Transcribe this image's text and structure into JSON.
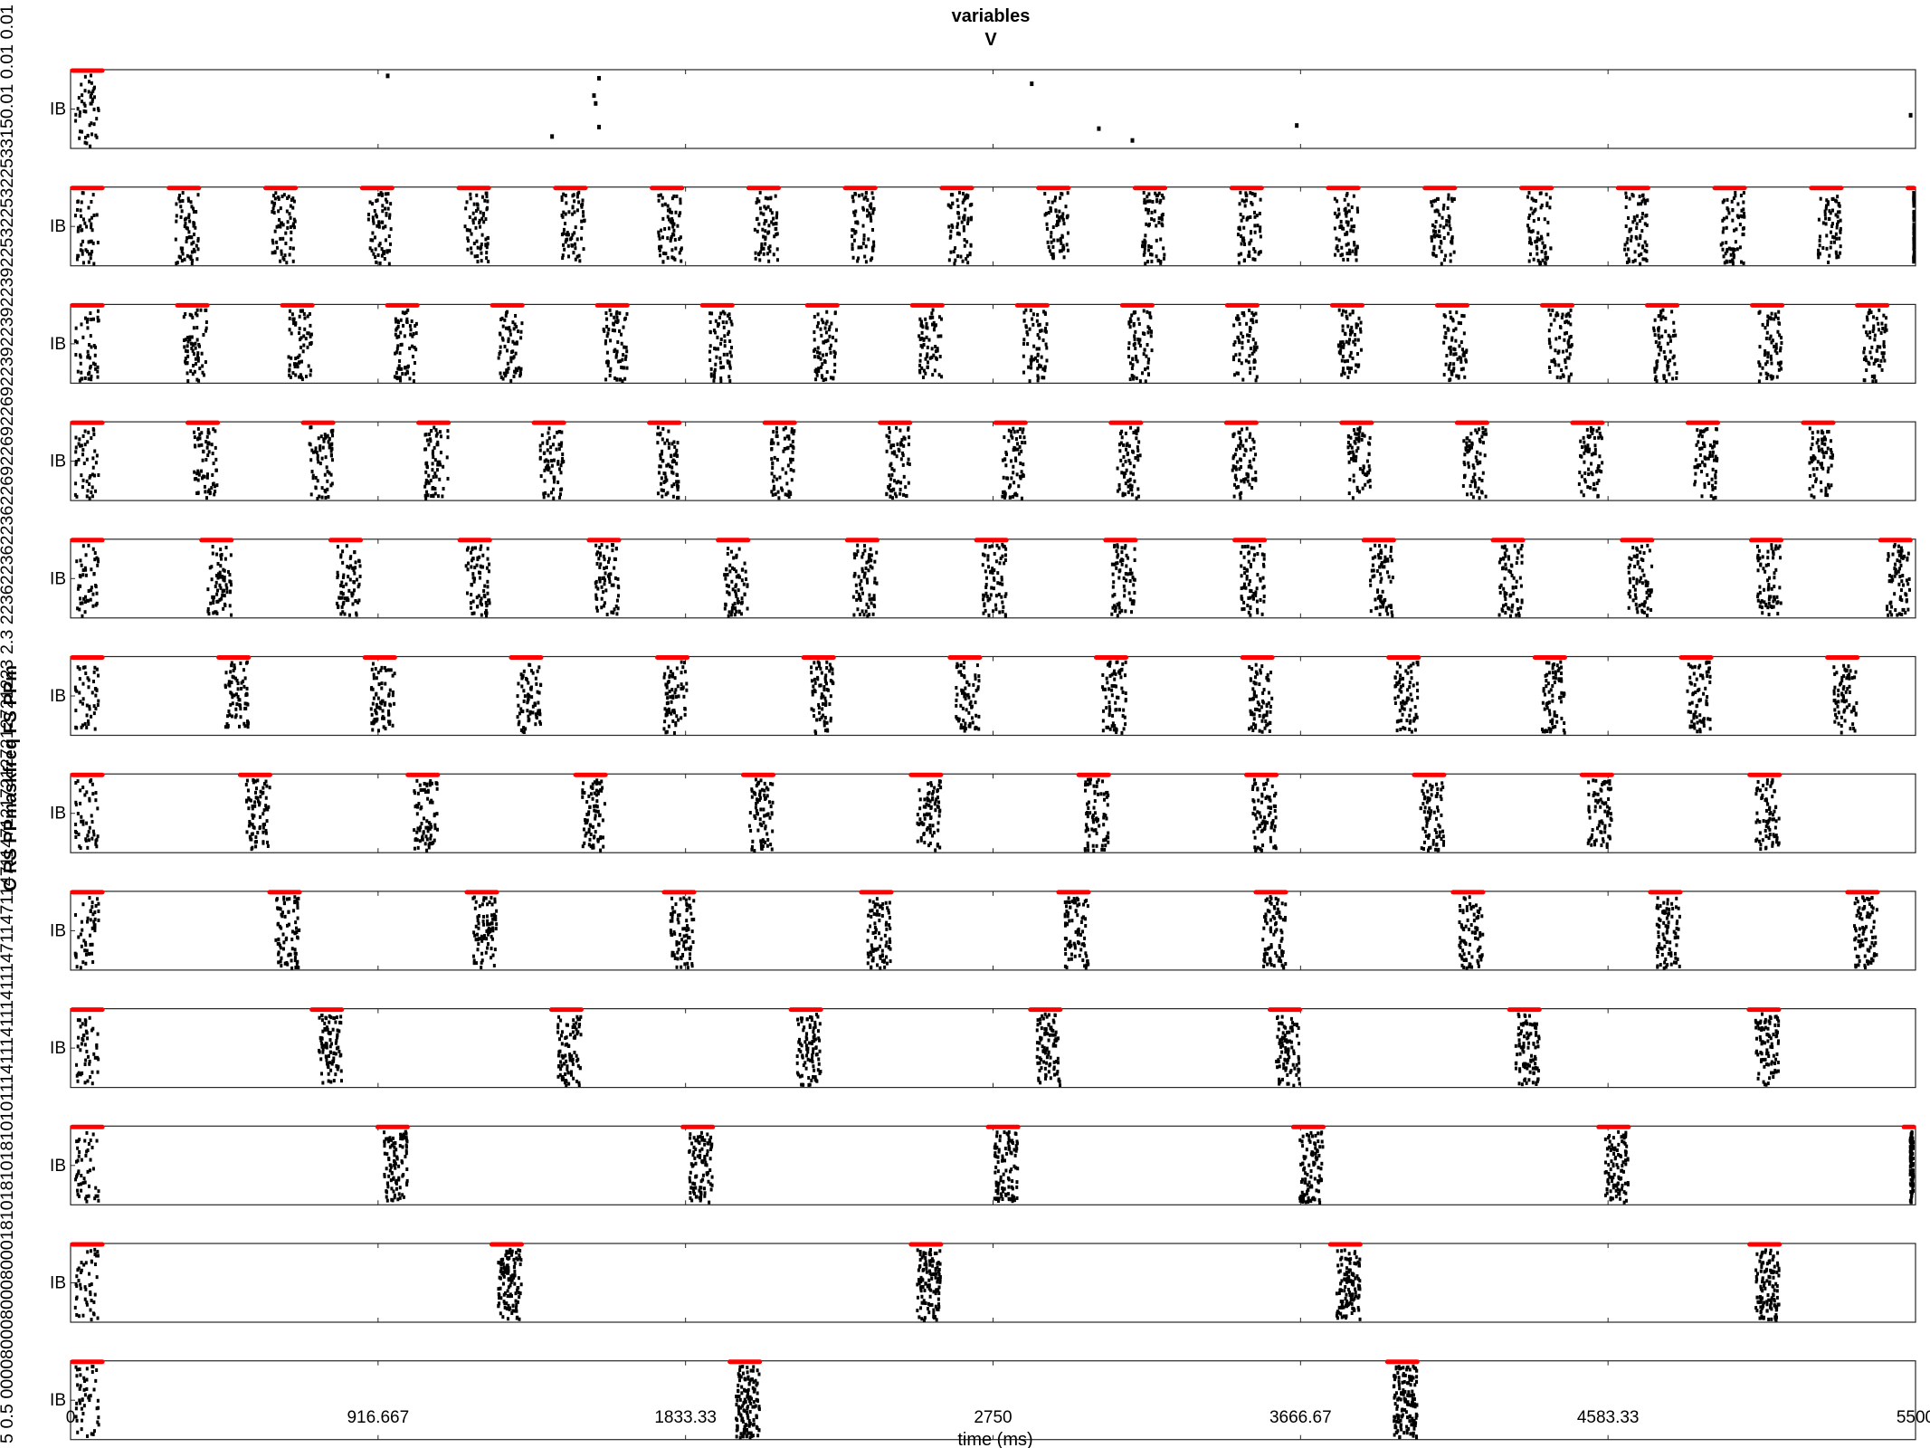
{
  "chart_data": {
    "type": "raster",
    "title": [
      "variables",
      "V"
    ],
    "xlabel": "time (ms)",
    "ylabel": "C RS PPmaskfreq FS PPm",
    "ylabel_side_ticks": "5 0.5 0000800080008000181018101810101114111411141114711471147114712172127212721223 2.3 2236223622362269226922692239223922392253225322533150.01 0.01 0.01",
    "xlim": [
      0,
      5500
    ],
    "xticks": [
      0,
      916.667,
      1833.33,
      2750,
      3666.67,
      4583.33,
      5500
    ],
    "xtick_labels": [
      "0",
      "916.667",
      "1833.33",
      "2750",
      "3666.67",
      "4583.33",
      "5500"
    ],
    "grid": false,
    "panel_ylabel": "IB",
    "colors": {
      "spikes": "#000000",
      "burst_marker": "#ff0000",
      "frame": "#262626"
    },
    "panels": [
      {
        "row": 1,
        "period_ms": null,
        "first_burst_ms": 0,
        "burst_width_ms": 100,
        "sparse_spikes": true
      },
      {
        "row": 2,
        "period_ms": 288,
        "first_burst_ms": 0,
        "burst_width_ms": 100
      },
      {
        "row": 3,
        "period_ms": 313,
        "first_burst_ms": 0,
        "burst_width_ms": 100
      },
      {
        "row": 4,
        "period_ms": 344,
        "first_burst_ms": 0,
        "burst_width_ms": 100
      },
      {
        "row": 5,
        "period_ms": 385,
        "first_burst_ms": 0,
        "burst_width_ms": 100
      },
      {
        "row": 6,
        "period_ms": 436,
        "first_burst_ms": 0,
        "burst_width_ms": 100
      },
      {
        "row": 7,
        "period_ms": 500,
        "first_burst_ms": 0,
        "burst_width_ms": 100
      },
      {
        "row": 8,
        "period_ms": 588,
        "first_burst_ms": 0,
        "burst_width_ms": 100
      },
      {
        "row": 9,
        "period_ms": 714,
        "first_burst_ms": 0,
        "burst_width_ms": 100
      },
      {
        "row": 10,
        "period_ms": 910,
        "first_burst_ms": 0,
        "burst_width_ms": 100
      },
      {
        "row": 11,
        "period_ms": 1250,
        "first_burst_ms": 0,
        "burst_width_ms": 100
      },
      {
        "row": 12,
        "period_ms": 1960,
        "first_burst_ms": 0,
        "burst_width_ms": 100
      }
    ]
  }
}
